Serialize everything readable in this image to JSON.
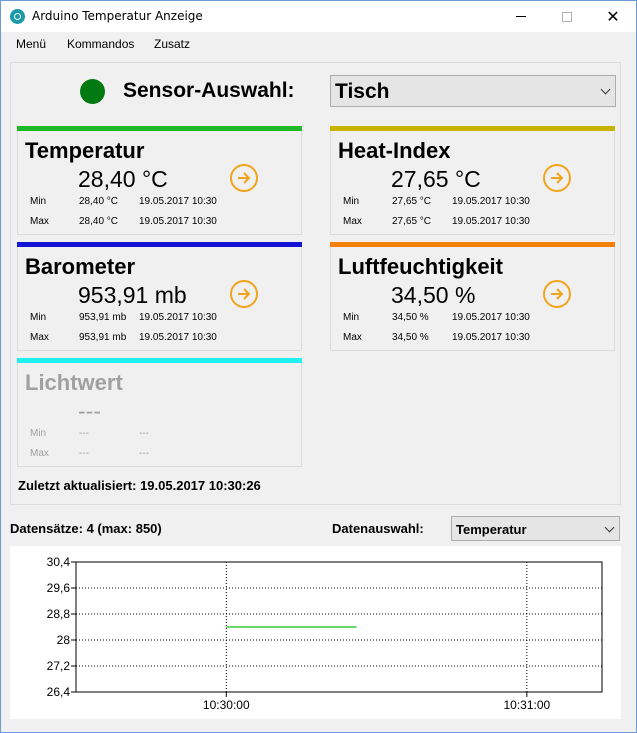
{
  "window": {
    "title": "Arduino Temperatur Anzeige",
    "close_glyph": "✕"
  },
  "menu": {
    "items": [
      "Menü",
      "Kommandos",
      "Zusatz"
    ]
  },
  "sensor": {
    "label": "Sensor-Auswahl:",
    "selected": "Tisch",
    "status_color": "#007a10"
  },
  "cards": [
    {
      "name": "Temperatur",
      "color": "#1fb826",
      "value": "28,40 °C",
      "min_label": "Min",
      "min_value": "28,40 °C",
      "min_time": "19.05.2017 10:30",
      "max_label": "Max",
      "max_value": "28,40 °C",
      "max_time": "19.05.2017 10:30",
      "enabled": true
    },
    {
      "name": "Heat-Index",
      "color": "#c8b400",
      "value": "27,65 °C",
      "min_label": "Min",
      "min_value": "27,65 °C",
      "min_time": "19.05.2017 10:30",
      "max_label": "Max",
      "max_value": "27,65 °C",
      "max_time": "19.05.2017 10:30",
      "enabled": true
    },
    {
      "name": "Barometer",
      "color": "#1414d6",
      "value": "953,91 mb",
      "min_label": "Min",
      "min_value": "953,91 mb",
      "min_time": "19.05.2017 10:30",
      "max_label": "Max",
      "max_value": "953,91 mb",
      "max_time": "19.05.2017 10:30",
      "enabled": true
    },
    {
      "name": "Luftfeuchtigkeit",
      "color": "#f5800a",
      "value": "34,50 %",
      "min_label": "Min",
      "min_value": "34,50 %",
      "min_time": "19.05.2017 10:30",
      "max_label": "Max",
      "max_value": "34,50 %",
      "max_time": "19.05.2017 10:30",
      "enabled": true
    },
    {
      "name": "Lichtwert",
      "color": "#1ff0f0",
      "value": "---",
      "min_label": "Min",
      "min_value": "---",
      "min_time": "---",
      "max_label": "Max",
      "max_value": "---",
      "max_time": "---",
      "enabled": false
    }
  ],
  "last_update": "Zuletzt aktualisiert: 19.05.2017 10:30:26",
  "records": "Datensätze: 4 (max: 850)",
  "data_select": {
    "label": "Datenauswahl:",
    "selected": "Temperatur"
  },
  "chart_data": {
    "type": "line",
    "y_ticks": [
      "30,4",
      "29,6",
      "28,8",
      "28",
      "27,2",
      "26,4"
    ],
    "ylim": [
      26.4,
      30.4
    ],
    "x_ticks": [
      "10:30:00",
      "10:31:00"
    ],
    "xlim": [
      "10:29:30",
      "10:31:15"
    ],
    "grid": true,
    "series": [
      {
        "color": "#3ccc3c",
        "x": [
          "10:30:00",
          "10:30:08",
          "10:30:17",
          "10:30:26"
        ],
        "y": [
          28.4,
          28.4,
          28.4,
          28.4
        ]
      }
    ]
  }
}
